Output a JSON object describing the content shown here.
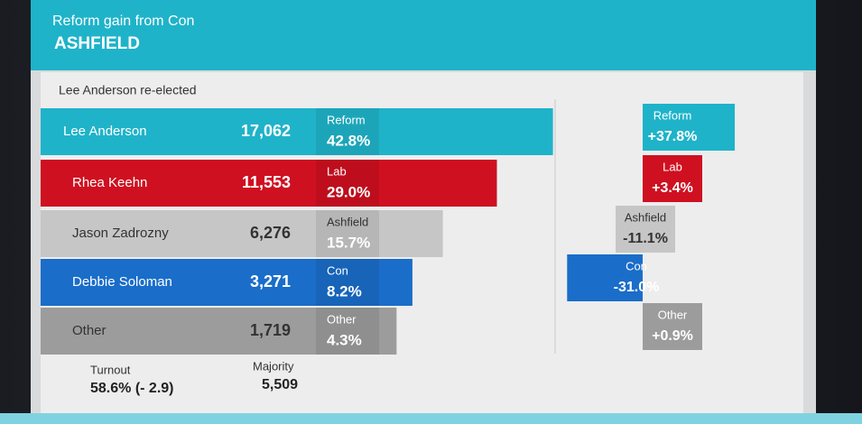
{
  "chart_data": {
    "type": "bar",
    "title": "Reform gain from Con",
    "subtitle": "ASHFIELD",
    "annotation": "Lee Anderson re-elected",
    "categories": [
      "Lee Anderson",
      "Rhea Keehn",
      "Jason Zadrozny",
      "Debbie Soloman",
      "Other"
    ],
    "parties": [
      "Reform",
      "Lab",
      "Ashfield",
      "Con",
      "Other"
    ],
    "colors": [
      "#1fb3c9",
      "#cf1020",
      "#c6c6c6",
      "#1a6dc9",
      "#9c9c9c"
    ],
    "votes": [
      "17,062",
      "11,553",
      "6,276",
      "3,271",
      "1,719"
    ],
    "share": {
      "values": [
        42.8,
        29.0,
        15.7,
        8.2,
        4.3
      ],
      "value_labels": [
        "42.8%",
        "29.0%",
        "15.7%",
        "8.2%",
        "4.3%"
      ]
    },
    "change": {
      "values": [
        37.8,
        3.4,
        -11.1,
        -31.0,
        0.9
      ],
      "value_labels": [
        "+37.8%",
        "+3.4%",
        "-11.1%",
        "-31.0%",
        "+0.9%"
      ]
    },
    "turnout_label": "Turnout",
    "turnout": "58.6% (- 2.9)",
    "majority_label": "Majority",
    "majority": "5,509"
  }
}
